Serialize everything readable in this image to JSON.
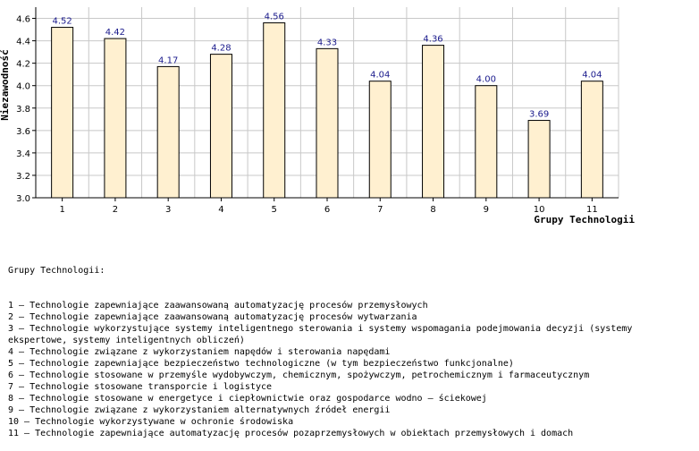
{
  "chart_data": {
    "type": "bar",
    "categories": [
      "1",
      "2",
      "3",
      "4",
      "5",
      "6",
      "7",
      "8",
      "9",
      "10",
      "11"
    ],
    "values": [
      4.52,
      4.42,
      4.17,
      4.28,
      4.56,
      4.33,
      4.04,
      4.36,
      4.0,
      3.69,
      4.04
    ],
    "value_labels": [
      "4.52",
      "4.42",
      "4.17",
      "4.28",
      "4.56",
      "4.33",
      "4.04",
      "4.36",
      "4.00",
      "3.69",
      "4.04"
    ],
    "xlabel": "Grupy Technologii",
    "ylabel": "Niezawodność",
    "ylim": [
      3.0,
      4.7
    ],
    "yticks": [
      "3.0",
      "3.2",
      "3.4",
      "3.6",
      "3.8",
      "4.0",
      "4.2",
      "4.4",
      "4.6"
    ],
    "grid": true,
    "bar_fill": "#fff0d0",
    "bar_stroke": "#000000",
    "grid_color": "#c8c8c8",
    "value_label_color": "#1a1a8c"
  },
  "legend": {
    "title": "Grupy Technologii:",
    "items": [
      "1 – Technologie zapewniające zaawansowaną automatyzację procesów przemysłowych",
      "2 – Technologie zapewniające zaawansowaną automatyzację procesów wytwarzania",
      "3 – Technologie wykorzystujące systemy inteligentnego sterowania i systemy wspomagania podejmowania decyzji (systemy ekspertowe, systemy inteligentnych obliczeń)",
      "4 – Technologie związane z wykorzystaniem napędów i sterowania napędami",
      "5 – Technologie zapewniające bezpieczeństwo technologiczne (w tym bezpieczeństwo funkcjonalne)",
      "6 – Technologie stosowane w przemyśle wydobywczym, chemicznym, spożywczym, petrochemicznym i farmaceutycznym",
      "7 – Technologie stosowane transporcie i logistyce",
      "8 – Technologie stosowane w energetyce i ciepłownictwie oraz gospodarce wodno – ściekowej",
      "9 – Technologie związane z wykorzystaniem alternatywnych źródeł energii",
      "10 – Technologie wykorzystywane w ochronie środowiska",
      "11 – Technologie zapewniające automatyzację procesów pozaprzemysłowych w obiektach przemysłowych i domach"
    ]
  }
}
